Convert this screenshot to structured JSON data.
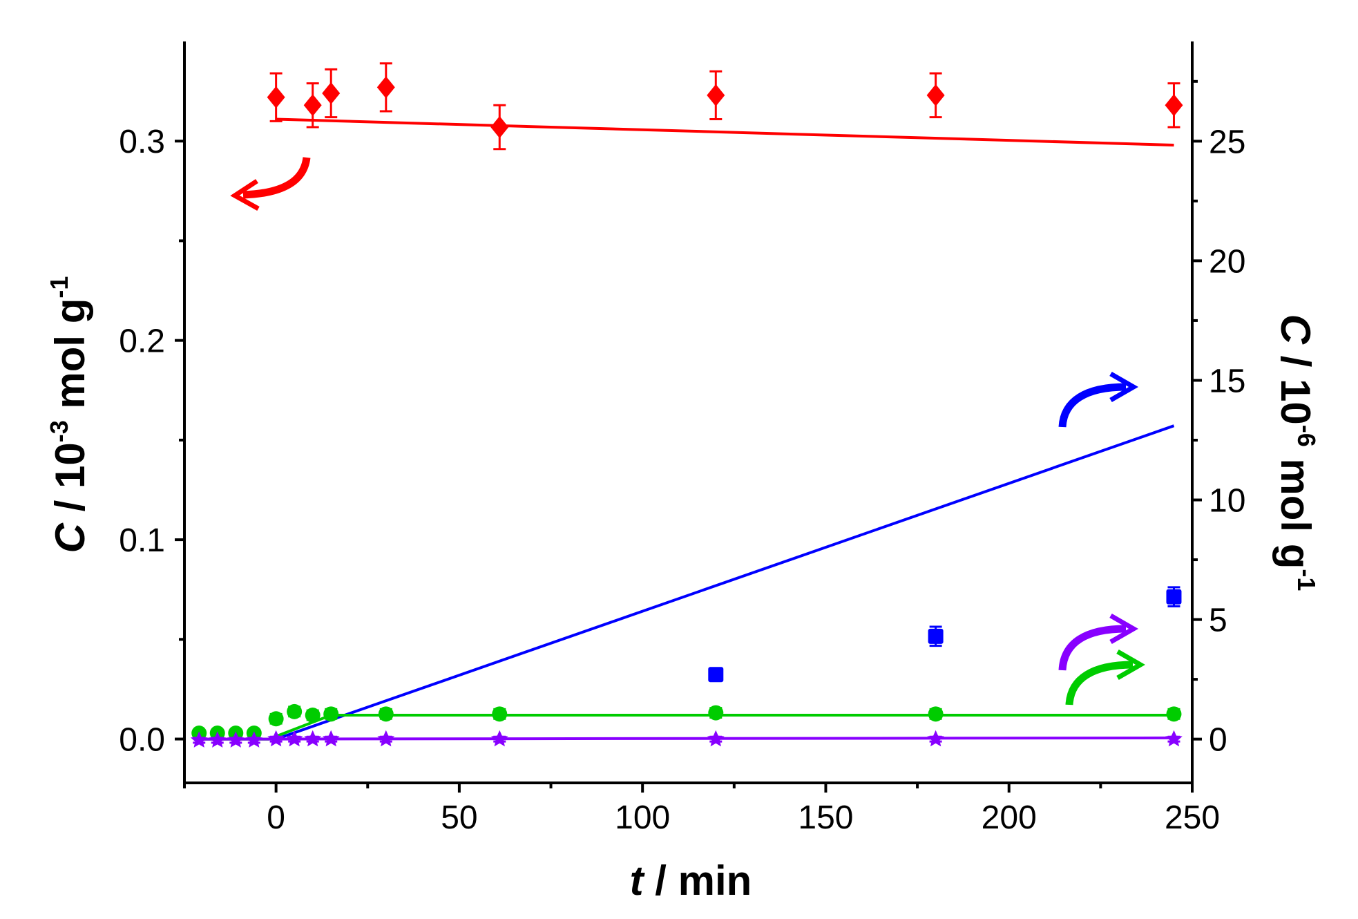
{
  "chart_data": {
    "type": "scatter",
    "title": "",
    "xlabel": {
      "var": "t",
      "rest": " / min"
    },
    "ylabel_left": {
      "var": "C",
      "rest": " / 10",
      "exp": "-3",
      "unit": " mol g",
      "unit_exp": "-1"
    },
    "ylabel_right": {
      "var": "C",
      "rest": " / 10",
      "exp": "-6",
      "unit": " mol g",
      "unit_exp": "-1"
    },
    "xlim": [
      -25,
      250
    ],
    "ylim_left": [
      -0.022,
      0.35
    ],
    "ylim_right": [
      -1.83,
      29.17
    ],
    "xticks": [
      0,
      50,
      100,
      150,
      200,
      250
    ],
    "xtick_labels": [
      "0",
      "50",
      "100",
      "150",
      "200",
      "250"
    ],
    "yticks_left": [
      0.0,
      0.1,
      0.2,
      0.3
    ],
    "ytick_labels_left": [
      "0.0",
      "0.1",
      "0.2",
      "0.3"
    ],
    "yticks_right": [
      0,
      5,
      10,
      15,
      20,
      25
    ],
    "ytick_labels_right": [
      "0",
      "5",
      "10",
      "15",
      "20",
      "25"
    ],
    "series": [
      {
        "name": "red diamonds (left axis)",
        "color": "#ff0000",
        "marker": "diamond",
        "axis": "left",
        "points": [
          {
            "x": 0,
            "y": 0.322,
            "err": 0.012
          },
          {
            "x": 10,
            "y": 0.318,
            "err": 0.011
          },
          {
            "x": 15,
            "y": 0.324,
            "err": 0.012
          },
          {
            "x": 30,
            "y": 0.327,
            "err": 0.012
          },
          {
            "x": 61,
            "y": 0.307,
            "err": 0.011
          },
          {
            "x": 120,
            "y": 0.323,
            "err": 0.012
          },
          {
            "x": 180,
            "y": 0.323,
            "err": 0.011
          },
          {
            "x": 245,
            "y": 0.318,
            "err": 0.011
          }
        ],
        "fit": [
          [
            0,
            0.311
          ],
          [
            245,
            0.298
          ]
        ]
      },
      {
        "name": "blue squares (right axis)",
        "color": "#0000ff",
        "marker": "square",
        "axis": "right",
        "points": [
          {
            "x": 120,
            "y": 2.7,
            "err": 0.2
          },
          {
            "x": 180,
            "y": 4.3,
            "err": 0.4
          },
          {
            "x": 245,
            "y": 5.95,
            "err": 0.4
          }
        ],
        "fit": [
          [
            0,
            0.0
          ],
          [
            245,
            13.1
          ]
        ]
      },
      {
        "name": "green circles (right axis)",
        "color": "#00cc00",
        "marker": "circle",
        "axis": "right",
        "points": [
          {
            "x": -21,
            "y": 0.25,
            "err": 0.12
          },
          {
            "x": -16,
            "y": 0.25,
            "err": 0.12
          },
          {
            "x": -11,
            "y": 0.25,
            "err": 0.12
          },
          {
            "x": -6,
            "y": 0.25,
            "err": 0.12
          },
          {
            "x": 0,
            "y": 0.85,
            "err": 0.2
          },
          {
            "x": 5,
            "y": 1.15,
            "err": 0.2
          },
          {
            "x": 10,
            "y": 1.0,
            "err": 0.2
          },
          {
            "x": 15,
            "y": 1.05,
            "err": 0.2
          },
          {
            "x": 30,
            "y": 1.05,
            "err": 0.2
          },
          {
            "x": 61,
            "y": 1.05,
            "err": 0.2
          },
          {
            "x": 120,
            "y": 1.1,
            "err": 0.2
          },
          {
            "x": 180,
            "y": 1.05,
            "err": 0.2
          },
          {
            "x": 245,
            "y": 1.05,
            "err": 0.2
          }
        ],
        "fit": [
          [
            -22,
            0.0
          ],
          [
            -2,
            0.0
          ],
          [
            15,
            1.0
          ],
          [
            245,
            1.0
          ]
        ]
      },
      {
        "name": "violet stars (right axis)",
        "color": "#8800ff",
        "marker": "star",
        "axis": "right",
        "points": [
          {
            "x": -21,
            "y": -0.05,
            "err": 0.1
          },
          {
            "x": -16,
            "y": -0.05,
            "err": 0.1
          },
          {
            "x": -11,
            "y": -0.05,
            "err": 0.1
          },
          {
            "x": -6,
            "y": -0.05,
            "err": 0.1
          },
          {
            "x": 0,
            "y": 0.0,
            "err": 0.1
          },
          {
            "x": 5,
            "y": 0.0,
            "err": 0.1
          },
          {
            "x": 10,
            "y": 0.0,
            "err": 0.1
          },
          {
            "x": 15,
            "y": 0.0,
            "err": 0.1
          },
          {
            "x": 30,
            "y": 0.0,
            "err": 0.1
          },
          {
            "x": 61,
            "y": 0.0,
            "err": 0.1
          },
          {
            "x": 120,
            "y": 0.0,
            "err": 0.1
          },
          {
            "x": 180,
            "y": 0.0,
            "err": 0.1
          },
          {
            "x": 245,
            "y": 0.0,
            "err": 0.1
          }
        ],
        "fit": [
          [
            -22,
            0.0
          ],
          [
            245,
            0.05
          ]
        ]
      }
    ],
    "annotations": [
      {
        "type": "curved-arrow",
        "color": "#ff0000",
        "meaning": "points to left axis"
      },
      {
        "type": "curved-arrow",
        "color": "#0000ff",
        "meaning": "points to right axis"
      },
      {
        "type": "curved-arrow",
        "color": "#8800ff",
        "meaning": "points to right axis"
      },
      {
        "type": "curved-arrow",
        "color": "#00cc00",
        "meaning": "points to right axis"
      }
    ]
  }
}
